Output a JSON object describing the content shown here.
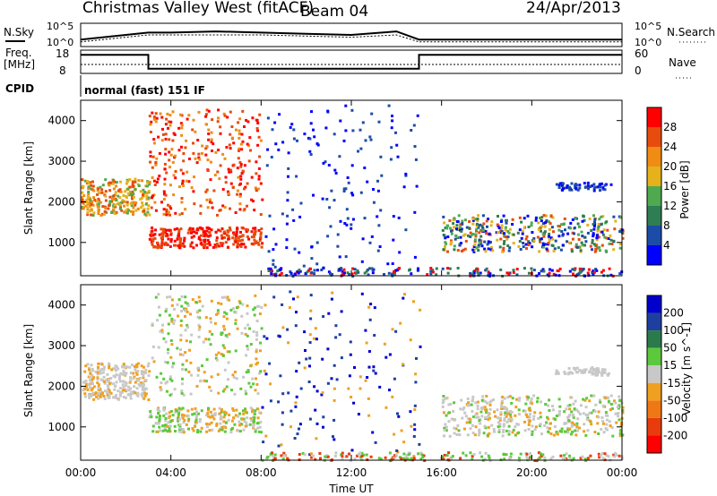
{
  "header": {
    "title": "Christmas Valley West (fitACF)",
    "beam": "Beam 04",
    "date": "24/Apr/2013"
  },
  "top_panels": {
    "nsky_label": "N.Sky",
    "nsky_ticks": [
      "10^5",
      "10^0"
    ],
    "nsearch_label": "N.Search",
    "nsearch_ticks": [
      "10^5",
      "10^0"
    ],
    "freq_label": "Freq.",
    "freq_unit": "[MHz]",
    "freq_ticks": [
      "18",
      "8"
    ],
    "nave_label": "Nave",
    "nave_ticks": [
      "60",
      "0"
    ],
    "cpid_label": "CPID",
    "cpid_value": "normal (fast) 151 IF"
  },
  "chart_data": [
    {
      "type": "line",
      "panel": "noise",
      "ylabel": "N.Sky",
      "x_hours": [
        0,
        2,
        3,
        4,
        6,
        8,
        10,
        12,
        14,
        15,
        16,
        18,
        20,
        22,
        24
      ],
      "series": [
        {
          "name": "N.Sky",
          "values": [
            3,
            5,
            6,
            6,
            6.5,
            6,
            5.5,
            5,
            6.5,
            3,
            3,
            3,
            3,
            3,
            3
          ]
        },
        {
          "name": "N.Search",
          "values": [
            2,
            4,
            5,
            5,
            5,
            5,
            4.5,
            4,
            5,
            2,
            2,
            2,
            2,
            2,
            2
          ]
        }
      ]
    },
    {
      "type": "line",
      "panel": "frequency",
      "ylabel": "Freq. [MHz]",
      "ylim": [
        8,
        18
      ],
      "x_hours": [
        0,
        3,
        3,
        15,
        15,
        24
      ],
      "series": [
        {
          "name": "Freq.",
          "values": [
            16,
            16,
            10,
            10,
            16,
            16
          ]
        }
      ]
    },
    {
      "type": "heatmap",
      "panel": "power",
      "xlabel": "",
      "ylabel": "Slant Range [km]",
      "xlim_hours": [
        0,
        24
      ],
      "ylim_km": [
        180,
        4500
      ],
      "yticks": [
        1000,
        2000,
        3000,
        4000
      ],
      "colorbar_label": "Power [dB]",
      "colorbar_ticks": [
        "4",
        "8",
        "12",
        "16",
        "20",
        "24",
        "28"
      ],
      "colors": [
        "#0000ff",
        "#1c4ca8",
        "#2f7d52",
        "#4faa4f",
        "#e5b21c",
        "#f08c14",
        "#e84c0c",
        "#ff0000"
      ]
    },
    {
      "type": "heatmap",
      "panel": "velocity",
      "xlabel": "Time UT",
      "ylabel": "Slant Range [km]",
      "xlim_hours": [
        0,
        24
      ],
      "ylim_km": [
        180,
        4500
      ],
      "yticks": [
        1000,
        2000,
        3000,
        4000
      ],
      "xticks": [
        "00:00",
        "04:00",
        "08:00",
        "12:00",
        "16:00",
        "20:00",
        "00:00"
      ],
      "colorbar_label": "Velocity [m s^-1]",
      "colorbar_ticks": [
        "200",
        "100",
        "50",
        "15",
        "-15",
        "-50",
        "-100",
        "-200"
      ],
      "colors": [
        "#0000cc",
        "#1f3fa0",
        "#2a7a4c",
        "#5cc83c",
        "#c8c8c8",
        "#f0a020",
        "#f07814",
        "#e83c0c",
        "#ff0000"
      ]
    }
  ]
}
